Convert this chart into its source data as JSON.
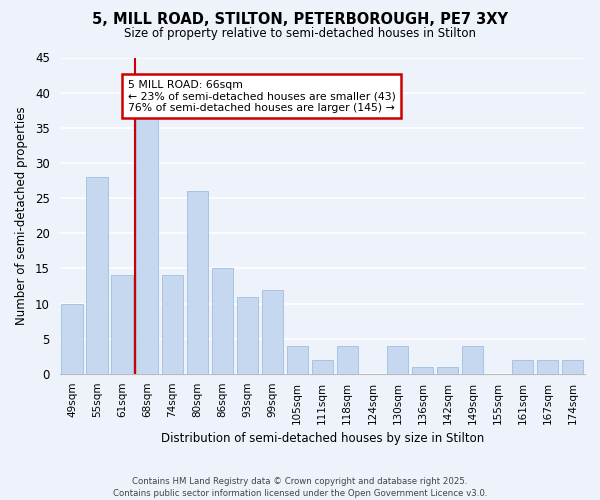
{
  "title_line1": "5, MILL ROAD, STILTON, PETERBOROUGH, PE7 3XY",
  "title_line2": "Size of property relative to semi-detached houses in Stilton",
  "xlabel": "Distribution of semi-detached houses by size in Stilton",
  "ylabel": "Number of semi-detached properties",
  "categories": [
    "49sqm",
    "55sqm",
    "61sqm",
    "68sqm",
    "74sqm",
    "80sqm",
    "86sqm",
    "93sqm",
    "99sqm",
    "105sqm",
    "111sqm",
    "118sqm",
    "124sqm",
    "130sqm",
    "136sqm",
    "142sqm",
    "149sqm",
    "155sqm",
    "161sqm",
    "167sqm",
    "174sqm"
  ],
  "values": [
    10,
    28,
    14,
    37,
    14,
    26,
    15,
    11,
    12,
    4,
    2,
    4,
    0,
    4,
    1,
    1,
    4,
    0,
    2,
    2,
    2
  ],
  "bar_color": "#c5d8f0",
  "bar_edge_color": "#a8c4e0",
  "ylim": [
    0,
    45
  ],
  "yticks": [
    0,
    5,
    10,
    15,
    20,
    25,
    30,
    35,
    40,
    45
  ],
  "vline_x_index": 2.5,
  "marker_label": "5 MILL ROAD: 66sqm",
  "annotation_line1": "← 23% of semi-detached houses are smaller (43)",
  "annotation_line2": "76% of semi-detached houses are larger (145) →",
  "annotation_box_color": "#ffffff",
  "annotation_box_edge": "#cc0000",
  "vline_color": "#cc0000",
  "background_color": "#eef2fa",
  "grid_color": "#ffffff",
  "footer_line1": "Contains HM Land Registry data © Crown copyright and database right 2025.",
  "footer_line2": "Contains public sector information licensed under the Open Government Licence v3.0."
}
